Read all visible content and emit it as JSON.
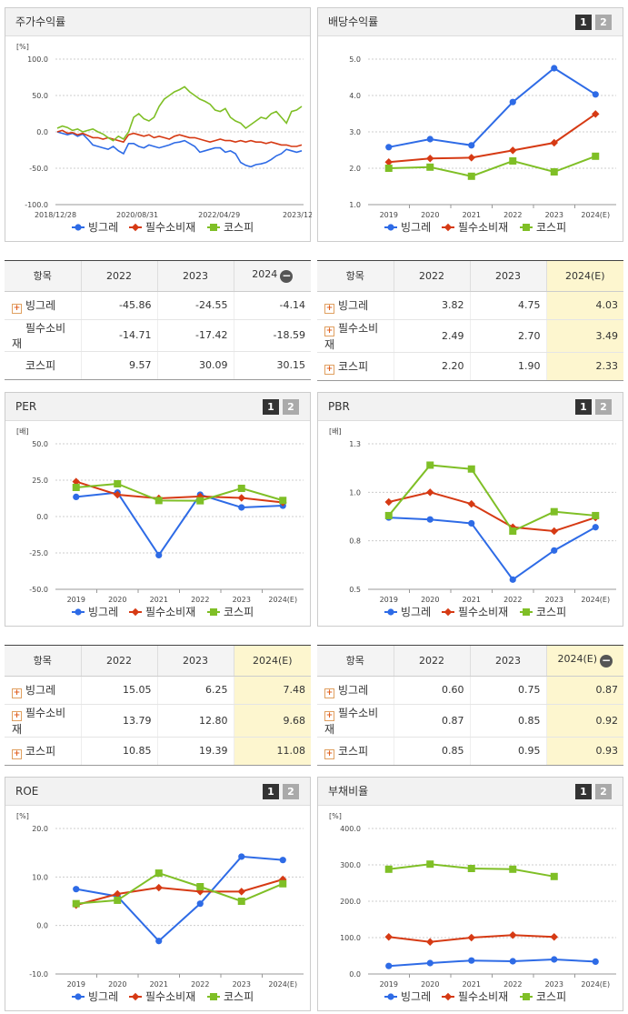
{
  "panels": {
    "p1": {
      "title": "주가수익률"
    },
    "p2": {
      "title": "배당수익률",
      "pages": [
        "1",
        "2"
      ]
    },
    "p3": {
      "title": "PER",
      "pages": [
        "1",
        "2"
      ]
    },
    "p4": {
      "title": "PBR",
      "pages": [
        "1",
        "2"
      ]
    },
    "p5": {
      "title": "ROE",
      "pages": [
        "1",
        "2"
      ]
    },
    "p6": {
      "title": "부채비율",
      "pages": [
        "1",
        "2"
      ]
    }
  },
  "legend": [
    "빙그레",
    "필수소비재",
    "코스피"
  ],
  "colors": {
    "s1": "#2e6be6",
    "s2": "#d63a14",
    "s3": "#7fbf26"
  },
  "chart_data": [
    {
      "id": "p1",
      "type": "line",
      "unit": "[%]",
      "yticks": [
        "100.0",
        "50.0",
        "0.0",
        "-50.0",
        "-100.0"
      ],
      "ylim": [
        -100,
        100
      ],
      "x_labels": [
        "2018/12/28",
        "2020/08/31",
        "2022/04/29",
        "2023/12/28"
      ],
      "series": [
        {
          "name": "빙그레",
          "values": [
            0,
            -2,
            -4,
            -2,
            -6,
            -3,
            -10,
            -18,
            -20,
            -22,
            -24,
            -20,
            -26,
            -30,
            -16,
            -16,
            -20,
            -22,
            -18,
            -20,
            -22,
            -20,
            -18,
            -15,
            -14,
            -12,
            -16,
            -20,
            -28,
            -26,
            -24,
            -22,
            -22,
            -28,
            -26,
            -30,
            -42,
            -46,
            -48,
            -45,
            -44,
            -42,
            -38,
            -33,
            -30,
            -24,
            -26,
            -28,
            -26
          ]
        },
        {
          "name": "필수소비재",
          "values": [
            0,
            2,
            -2,
            -1,
            -4,
            -2,
            -5,
            -8,
            -8,
            -10,
            -8,
            -10,
            -12,
            -14,
            -4,
            -2,
            -4,
            -6,
            -4,
            -8,
            -6,
            -8,
            -10,
            -6,
            -4,
            -6,
            -8,
            -8,
            -10,
            -12,
            -14,
            -12,
            -10,
            -12,
            -12,
            -14,
            -12,
            -14,
            -12,
            -14,
            -14,
            -16,
            -14,
            -16,
            -18,
            -18,
            -20,
            -20,
            -18
          ]
        },
        {
          "name": "코스피",
          "values": [
            5,
            8,
            6,
            2,
            4,
            0,
            2,
            4,
            0,
            -3,
            -8,
            -12,
            -6,
            -10,
            0,
            20,
            25,
            18,
            15,
            20,
            35,
            45,
            50,
            55,
            58,
            62,
            55,
            50,
            45,
            42,
            38,
            30,
            28,
            32,
            20,
            15,
            12,
            5,
            10,
            15,
            20,
            18,
            25,
            28,
            20,
            12,
            28,
            30,
            35
          ]
        }
      ]
    },
    {
      "id": "p2",
      "type": "line",
      "unit": "",
      "yticks": [
        "5.0",
        "4.0",
        "3.0",
        "2.0",
        "1.0"
      ],
      "ylim": [
        1,
        5
      ],
      "categories": [
        "2019",
        "2020",
        "2021",
        "2022",
        "2023",
        "2024(E)"
      ],
      "series": [
        {
          "name": "빙그레",
          "values": [
            2.58,
            2.8,
            2.63,
            3.82,
            4.75,
            4.03
          ]
        },
        {
          "name": "필수소비재",
          "values": [
            2.17,
            2.27,
            2.29,
            2.49,
            2.7,
            3.49
          ]
        },
        {
          "name": "코스피",
          "values": [
            2.0,
            2.03,
            1.78,
            2.2,
            1.9,
            2.33
          ]
        }
      ]
    },
    {
      "id": "p3",
      "type": "line",
      "unit": "[배]",
      "yticks": [
        "50.0",
        "25.0",
        "0.0",
        "-25.0",
        "-50.0"
      ],
      "ylim": [
        -50,
        50
      ],
      "categories": [
        "2019",
        "2020",
        "2021",
        "2022",
        "2023",
        "2024(E)"
      ],
      "series": [
        {
          "name": "빙그레",
          "values": [
            13.5,
            16.5,
            -26.5,
            15.05,
            6.25,
            7.48
          ]
        },
        {
          "name": "필수소비재",
          "values": [
            24,
            15,
            12.5,
            13.79,
            12.8,
            9.68
          ]
        },
        {
          "name": "코스피",
          "values": [
            20,
            22.5,
            11,
            10.85,
            19.39,
            11.08
          ]
        }
      ]
    },
    {
      "id": "p4",
      "type": "line",
      "unit": "[배]",
      "yticks": [
        "1.3",
        "1.0",
        "0.8",
        "0.5"
      ],
      "ytickvals": [
        1.3,
        1.05,
        0.8,
        0.55
      ],
      "ylim": [
        0.55,
        1.3
      ],
      "categories": [
        "2019",
        "2020",
        "2021",
        "2022",
        "2023",
        "2024(E)"
      ],
      "series": [
        {
          "name": "빙그레",
          "values": [
            0.92,
            0.91,
            0.89,
            0.6,
            0.75,
            0.87
          ]
        },
        {
          "name": "필수소비재",
          "values": [
            1.0,
            1.05,
            0.99,
            0.87,
            0.85,
            0.92
          ]
        },
        {
          "name": "코스피",
          "values": [
            0.93,
            1.19,
            1.17,
            0.85,
            0.95,
            0.93
          ]
        }
      ]
    },
    {
      "id": "p5",
      "type": "line",
      "unit": "[%]",
      "yticks": [
        "20.0",
        "10.0",
        "0.0",
        "-10.0"
      ],
      "ylim": [
        -10,
        20
      ],
      "categories": [
        "2019",
        "2020",
        "2021",
        "2022",
        "2023",
        "2024(E)"
      ],
      "series": [
        {
          "name": "빙그레",
          "values": [
            7.5,
            6.0,
            -3.2,
            4.5,
            14.2,
            13.5
          ]
        },
        {
          "name": "필수소비재",
          "values": [
            4.2,
            6.5,
            7.8,
            7.0,
            7.0,
            9.5
          ]
        },
        {
          "name": "코스피",
          "values": [
            4.5,
            5.2,
            10.8,
            8.0,
            5.0,
            8.6
          ]
        }
      ]
    },
    {
      "id": "p6",
      "type": "line",
      "unit": "[%]",
      "yticks": [
        "400.0",
        "300.0",
        "200.0",
        "100.0",
        "0.0"
      ],
      "ylim": [
        0,
        400
      ],
      "categories": [
        "2019",
        "2020",
        "2021",
        "2022",
        "2023",
        "2024(E)"
      ],
      "series": [
        {
          "name": "빙그레",
          "values": [
            22,
            30,
            37,
            35,
            40,
            34
          ]
        },
        {
          "name": "필수소비재",
          "values": [
            102,
            88,
            100,
            107,
            102,
            null
          ]
        },
        {
          "name": "코스피",
          "values": [
            288,
            302,
            290,
            288,
            268,
            null
          ]
        }
      ]
    }
  ],
  "tables": {
    "t1": {
      "header": [
        "항목",
        "2022",
        "2023",
        "2024"
      ],
      "rows": [
        {
          "name": "빙그레",
          "plus": true,
          "v": [
            "-45.86",
            "-24.55",
            "-4.14"
          ]
        },
        {
          "name": "필수소비재",
          "plus": false,
          "v": [
            "-14.71",
            "-17.42",
            "-18.59"
          ]
        },
        {
          "name": "코스피",
          "plus": false,
          "v": [
            "9.57",
            "30.09",
            "30.15"
          ]
        }
      ]
    },
    "t2": {
      "header": [
        "항목",
        "2022",
        "2023",
        "2024(E)"
      ],
      "rows": [
        {
          "name": "빙그레",
          "plus": true,
          "v": [
            "3.82",
            "4.75",
            "4.03"
          ]
        },
        {
          "name": "필수소비재",
          "plus": true,
          "v": [
            "2.49",
            "2.70",
            "3.49"
          ]
        },
        {
          "name": "코스피",
          "plus": true,
          "v": [
            "2.20",
            "1.90",
            "2.33"
          ]
        }
      ]
    },
    "t3": {
      "header": [
        "항목",
        "2022",
        "2023",
        "2024(E)"
      ],
      "rows": [
        {
          "name": "빙그레",
          "plus": true,
          "v": [
            "15.05",
            "6.25",
            "7.48"
          ]
        },
        {
          "name": "필수소비재",
          "plus": true,
          "v": [
            "13.79",
            "12.80",
            "9.68"
          ]
        },
        {
          "name": "코스피",
          "plus": true,
          "v": [
            "10.85",
            "19.39",
            "11.08"
          ]
        }
      ]
    },
    "t4": {
      "header": [
        "항목",
        "2022",
        "2023",
        "2024(E)"
      ],
      "rows": [
        {
          "name": "빙그레",
          "plus": true,
          "v": [
            "0.60",
            "0.75",
            "0.87"
          ]
        },
        {
          "name": "필수소비재",
          "plus": true,
          "v": [
            "0.87",
            "0.85",
            "0.92"
          ]
        },
        {
          "name": "코스피",
          "plus": true,
          "v": [
            "0.85",
            "0.95",
            "0.93"
          ]
        }
      ]
    }
  }
}
